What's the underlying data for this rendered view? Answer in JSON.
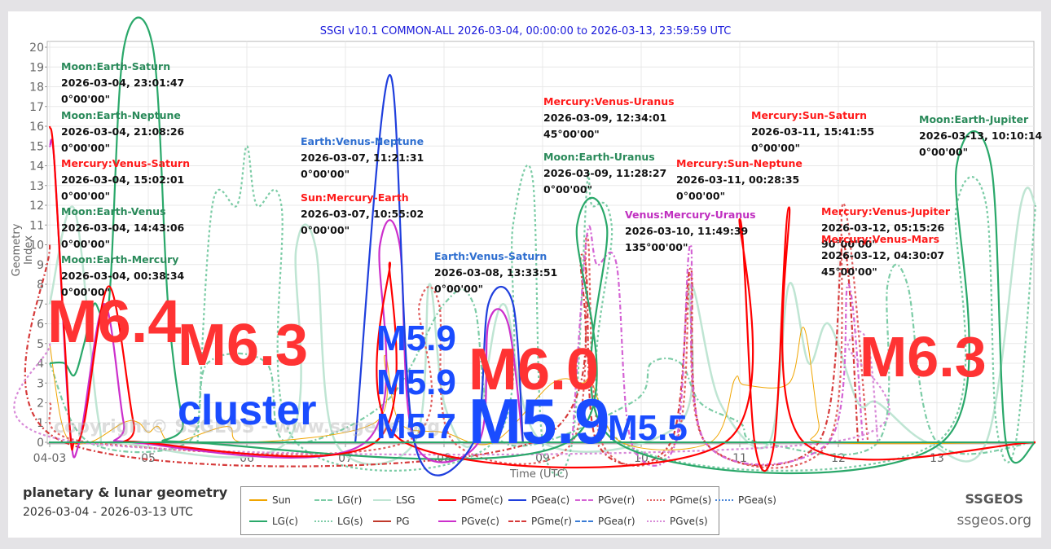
{
  "chart_title": "SSGI v10.1 COMMON-ALL 2026-03-04, 00:00:00 to 2026-03-13, 23:59:59 UTC",
  "footer": {
    "title": "planetary & lunar geometry",
    "range": "2026-03-04 - 2026-03-13 UTC",
    "brand": "SSGEOS",
    "brand_url": "ssgeos.org"
  },
  "watermark": "copyright© SSGEOS - www.ssgeos.org",
  "axes": {
    "xlabel": "Time (UTC)",
    "ylabel": "Geometry Index",
    "xticks": [
      "04-03",
      "05",
      "06",
      "07",
      "08",
      "09",
      "10",
      "11",
      "12",
      "13"
    ],
    "yticks": [
      "0",
      "1",
      "2",
      "3",
      "4",
      "5",
      "6",
      "7",
      "8",
      "9",
      "10",
      "11",
      "12",
      "13",
      "14",
      "15",
      "16",
      "17",
      "18",
      "19",
      "20"
    ]
  },
  "legend": [
    {
      "label": "Sun",
      "color": "#f0a500",
      "style": "solid"
    },
    {
      "label": "LG(r)",
      "color": "#7ccca6",
      "style": "dashdot"
    },
    {
      "label": "LSG",
      "color": "#bfe5d3",
      "style": "solid"
    },
    {
      "label": "PGme(c)",
      "color": "#ff0000",
      "style": "solid"
    },
    {
      "label": "PGea(c)",
      "color": "#1f3fdd",
      "style": "solid"
    },
    {
      "label": "PGve(r)",
      "color": "#d463d4",
      "style": "dashdot"
    },
    {
      "label": "PGme(s)",
      "color": "#e06060",
      "style": "dotted"
    },
    {
      "label": "PGea(s)",
      "color": "#4a86d8",
      "style": "dotted"
    },
    {
      "label": "LG(c)",
      "color": "#2aa86a",
      "style": "solid"
    },
    {
      "label": "LG(s)",
      "color": "#7ccca6",
      "style": "dotted"
    },
    {
      "label": "PG",
      "color": "#c0392b",
      "style": "solid"
    },
    {
      "label": "PGve(c)",
      "color": "#cc2fcc",
      "style": "solid"
    },
    {
      "label": "PGme(r)",
      "color": "#d63a3a",
      "style": "dashdot"
    },
    {
      "label": "PGea(r)",
      "color": "#3a7bd5",
      "style": "dashdot"
    },
    {
      "label": "PGve(s)",
      "color": "#d88ad8",
      "style": "dotted"
    }
  ],
  "annotations": [
    {
      "title": "Moon:Earth-Saturn",
      "date": "2026-03-04, 23:01:47",
      "angle": "0°00'00\"",
      "color": "#2a8a5a"
    },
    {
      "title": "Moon:Earth-Neptune",
      "date": "2026-03-04, 21:08:26",
      "angle": "0°00'00\"",
      "color": "#2a8a5a"
    },
    {
      "title": "Mercury:Venus-Saturn",
      "date": "2026-03-04, 15:02:01",
      "angle": "0°00'00\"",
      "color": "#ff1a1a"
    },
    {
      "title": "Moon:Earth-Venus",
      "date": "2026-03-04, 14:43:06",
      "angle": "0°00'00\"",
      "color": "#2a8a5a"
    },
    {
      "title": "Moon:Earth-Mercury",
      "date": "2026-03-04, 00:38:34",
      "angle": "0°00'00\"",
      "color": "#2a8a5a"
    },
    {
      "title": "Earth:Venus-Neptune",
      "date": "2026-03-07, 11:21:31",
      "angle": "0°00'00\"",
      "color": "#2f6fd0"
    },
    {
      "title": "Sun:Mercury-Earth",
      "date": "2026-03-07, 10:55:02",
      "angle": "0°00'00\"",
      "color": "#ff1a1a"
    },
    {
      "title": "Earth:Venus-Saturn",
      "date": "2026-03-08, 13:33:51",
      "angle": "0°00'00\"",
      "color": "#2f6fd0"
    },
    {
      "title": "Mercury:Venus-Uranus",
      "date": "2026-03-09, 12:34:01",
      "angle": "45°00'00\"",
      "color": "#ff1a1a"
    },
    {
      "title": "Moon:Earth-Uranus",
      "date": "2026-03-09, 11:28:27",
      "angle": "0°00'00\"",
      "color": "#2a8a5a"
    },
    {
      "title": "Venus:Mercury-Uranus",
      "date": "2026-03-10, 11:49:39",
      "angle": "135°00'00\"",
      "color": "#c030c0"
    },
    {
      "title": "Mercury:Sun-Neptune",
      "date": "2026-03-11, 00:28:35",
      "angle": "0°00'00\"",
      "color": "#ff1a1a"
    },
    {
      "title": "Mercury:Sun-Saturn",
      "date": "2026-03-11, 15:41:55",
      "angle": "0°00'00\"",
      "color": "#ff1a1a"
    },
    {
      "title": "Mercury:Venus-Jupiter",
      "date": "2026-03-12, 05:15:26",
      "angle": "90°00'00\"",
      "color": "#ff1a1a"
    },
    {
      "title": "Mercury:Venus-Mars",
      "date": "2026-03-12, 04:30:07",
      "angle": "45°00'00\"",
      "color": "#ff1a1a"
    },
    {
      "title": "Moon:Earth-Jupiter",
      "date": "2026-03-13, 10:10:14",
      "angle": "0°00'00\"",
      "color": "#2a8a5a"
    }
  ],
  "earthquakes": [
    {
      "label": "M6.4",
      "color": "#ff3333"
    },
    {
      "label": "M6.3",
      "color": "#ff3333"
    },
    {
      "label": "cluster",
      "color": "#1a4cff"
    },
    {
      "label": "M5.9",
      "color": "#1a4cff"
    },
    {
      "label": "M5.9",
      "color": "#1a4cff"
    },
    {
      "label": "M5.7",
      "color": "#1a4cff"
    },
    {
      "label": "M6.0",
      "color": "#ff3333"
    },
    {
      "label": "M5.9",
      "color": "#1a4cff"
    },
    {
      "label": "M5.5",
      "color": "#1a4cff"
    },
    {
      "label": "M6.3",
      "color": "#ff3333"
    }
  ],
  "chart_data": {
    "type": "line",
    "title": "SSGI v10.1 COMMON-ALL 2026-03-04, 00:00:00 to 2026-03-13, 23:59:59 UTC",
    "xlabel": "Time (UTC)",
    "ylabel": "Geometry Index",
    "xlim": [
      "2026-03-04",
      "2026-03-14"
    ],
    "ylim": [
      0,
      20
    ],
    "grid": true,
    "legend_position": "bottom",
    "x_unit": "days since 2026-03-04 00:00",
    "series": [
      {
        "name": "LG(c)",
        "points": [
          [
            0,
            4
          ],
          [
            0.15,
            4
          ],
          [
            0.25,
            3.4
          ],
          [
            0.35,
            5
          ],
          [
            0.45,
            7
          ],
          [
            0.6,
            7.1
          ],
          [
            0.75,
            19.9
          ],
          [
            1.05,
            19.9
          ],
          [
            1.2,
            7
          ],
          [
            1.35,
            1
          ],
          [
            1.45,
            0
          ],
          [
            5.25,
            0
          ],
          [
            5.35,
            11
          ],
          [
            5.65,
            11
          ],
          [
            5.75,
            0
          ],
          [
            9.05,
            0
          ],
          [
            9.2,
            14
          ],
          [
            9.55,
            14
          ],
          [
            9.7,
            0
          ],
          [
            10,
            0
          ]
        ]
      },
      {
        "name": "PGme(c)",
        "points": [
          [
            0,
            16
          ],
          [
            0.05,
            14
          ],
          [
            0.2,
            1
          ],
          [
            0.25,
            0
          ],
          [
            0.35,
            1
          ],
          [
            0.6,
            7.9
          ],
          [
            0.85,
            1
          ],
          [
            0.95,
            0
          ],
          [
            3.3,
            0
          ],
          [
            3.45,
            9.1
          ],
          [
            3.6,
            0
          ],
          [
            6.85,
            0
          ],
          [
            7.0,
            11.3
          ],
          [
            7.15,
            0
          ],
          [
            7.35,
            0
          ],
          [
            7.5,
            11.9
          ],
          [
            7.65,
            0
          ],
          [
            10,
            0
          ]
        ]
      },
      {
        "name": "PGea(c)",
        "points": [
          [
            3.1,
            0
          ],
          [
            3.45,
            18.6
          ],
          [
            3.7,
            0
          ],
          [
            4.3,
            0
          ],
          [
            4.45,
            7
          ],
          [
            4.7,
            7
          ],
          [
            4.8,
            0
          ]
        ]
      },
      {
        "name": "PGve(c)",
        "points": [
          [
            0,
            15
          ],
          [
            0.05,
            14
          ],
          [
            0.2,
            1
          ],
          [
            0.3,
            0
          ],
          [
            0.55,
            7
          ],
          [
            0.75,
            1
          ],
          [
            0.85,
            0
          ],
          [
            3.2,
            0
          ],
          [
            3.35,
            10
          ],
          [
            3.55,
            10
          ],
          [
            3.7,
            0
          ],
          [
            4.35,
            0
          ],
          [
            4.45,
            6
          ],
          [
            4.65,
            6
          ],
          [
            4.8,
            0
          ]
        ]
      },
      {
        "name": "Sun",
        "points": [
          [
            0,
            5
          ],
          [
            0.15,
            0.5
          ],
          [
            0.4,
            0
          ],
          [
            0.75,
            1
          ],
          [
            0.9,
            1
          ],
          [
            1.0,
            0.5
          ],
          [
            1.1,
            0.8
          ],
          [
            1.25,
            0
          ],
          [
            1.8,
            0.8
          ],
          [
            2.0,
            0
          ],
          [
            3.3,
            1
          ],
          [
            3.4,
            4.4
          ],
          [
            3.55,
            1
          ],
          [
            4.0,
            0.5
          ],
          [
            4.5,
            0
          ],
          [
            5.1,
            3
          ],
          [
            5.4,
            3
          ],
          [
            5.5,
            3
          ],
          [
            5.8,
            0
          ],
          [
            6.7,
            0
          ],
          [
            6.95,
            3.2
          ],
          [
            7.05,
            2.9
          ],
          [
            7.5,
            3
          ],
          [
            7.65,
            5.8
          ],
          [
            7.8,
            1
          ],
          [
            7.9,
            0
          ],
          [
            10,
            0
          ]
        ]
      },
      {
        "name": "LSG",
        "points": [
          [
            0,
            7
          ],
          [
            0.25,
            11.8
          ],
          [
            0.5,
            1
          ],
          [
            0.7,
            0
          ],
          [
            2.4,
            0
          ],
          [
            2.5,
            9.8
          ],
          [
            2.7,
            9.8
          ],
          [
            2.9,
            0
          ],
          [
            3.7,
            0
          ],
          [
            3.85,
            8
          ],
          [
            4.0,
            2
          ],
          [
            4.3,
            0
          ],
          [
            4.6,
            7
          ],
          [
            5.0,
            0
          ],
          [
            6.4,
            1
          ],
          [
            6.5,
            8
          ],
          [
            6.8,
            2
          ],
          [
            7.3,
            0
          ],
          [
            7.5,
            8
          ],
          [
            7.7,
            4
          ],
          [
            7.9,
            6
          ],
          [
            8.2,
            2
          ],
          [
            8.4,
            2
          ],
          [
            8.9,
            0
          ],
          [
            9.5,
            0
          ],
          [
            9.85,
            12
          ],
          [
            10,
            12
          ]
        ]
      },
      {
        "name": "LG(s)",
        "points": [
          [
            1.5,
            0
          ],
          [
            1.65,
            12
          ],
          [
            1.9,
            12
          ],
          [
            2.0,
            15
          ],
          [
            2.1,
            12
          ],
          [
            2.35,
            12
          ],
          [
            2.5,
            0
          ],
          [
            4.5,
            0
          ],
          [
            4.7,
            11
          ],
          [
            4.9,
            13.3
          ],
          [
            5.0,
            0
          ],
          [
            5.3,
            0
          ],
          [
            5.45,
            13
          ],
          [
            5.5,
            12
          ],
          [
            5.7,
            11
          ],
          [
            5.8,
            0
          ],
          [
            9.0,
            0
          ],
          [
            9.2,
            12
          ],
          [
            9.5,
            12
          ],
          [
            9.6,
            1
          ],
          [
            9.8,
            0
          ],
          [
            10,
            12
          ]
        ]
      },
      {
        "name": "LG(r)",
        "points": [
          [
            0,
            4
          ],
          [
            0.4,
            0
          ],
          [
            1.4,
            0
          ],
          [
            1.6,
            4
          ],
          [
            2.2,
            4
          ],
          [
            2.4,
            0
          ],
          [
            3.4,
            2
          ],
          [
            4.0,
            7
          ],
          [
            4.3,
            7
          ],
          [
            4.6,
            0
          ],
          [
            5.9,
            2
          ],
          [
            6.1,
            4
          ],
          [
            6.4,
            4
          ],
          [
            6.6,
            2
          ],
          [
            7.0,
            1
          ],
          [
            7.2,
            0
          ],
          [
            8.4,
            0
          ],
          [
            8.5,
            8
          ],
          [
            8.7,
            8
          ],
          [
            9.0,
            0
          ],
          [
            10,
            0
          ]
        ]
      },
      {
        "name": "PGme(s)",
        "points": [
          [
            0,
            2
          ],
          [
            0.4,
            0
          ],
          [
            3.6,
            0
          ],
          [
            3.75,
            7
          ],
          [
            3.95,
            7
          ],
          [
            4.1,
            0
          ],
          [
            5.3,
            0
          ],
          [
            5.45,
            10.5
          ],
          [
            5.6,
            0
          ],
          [
            6.35,
            0
          ],
          [
            6.5,
            8.5
          ],
          [
            6.65,
            0
          ],
          [
            7.9,
            0
          ],
          [
            8.05,
            12.1
          ],
          [
            8.3,
            0
          ]
        ]
      },
      {
        "name": "PGme(r)",
        "points": [
          [
            0,
            10
          ],
          [
            0.15,
            0
          ],
          [
            4.9,
            0
          ],
          [
            5.4,
            9.5
          ],
          [
            5.55,
            0
          ],
          [
            6.3,
            0
          ],
          [
            6.5,
            8.8
          ],
          [
            6.65,
            0
          ],
          [
            7.8,
            0
          ],
          [
            8.05,
            10
          ],
          [
            8.2,
            0
          ]
        ]
      },
      {
        "name": "PGve(r)",
        "points": [
          [
            5.3,
            0
          ],
          [
            5.45,
            10.5
          ],
          [
            5.55,
            9
          ],
          [
            5.75,
            9
          ],
          [
            5.9,
            0
          ],
          [
            6.35,
            0
          ],
          [
            6.5,
            10
          ],
          [
            6.65,
            0
          ],
          [
            7.9,
            0
          ],
          [
            8.1,
            8
          ],
          [
            8.25,
            0
          ]
        ]
      },
      {
        "name": "PGve(s)",
        "points": [
          [
            0,
            5
          ],
          [
            0.3,
            0
          ],
          [
            7.9,
            0
          ],
          [
            8.1,
            5
          ],
          [
            8.3,
            5
          ],
          [
            8.4,
            0
          ]
        ]
      }
    ]
  }
}
